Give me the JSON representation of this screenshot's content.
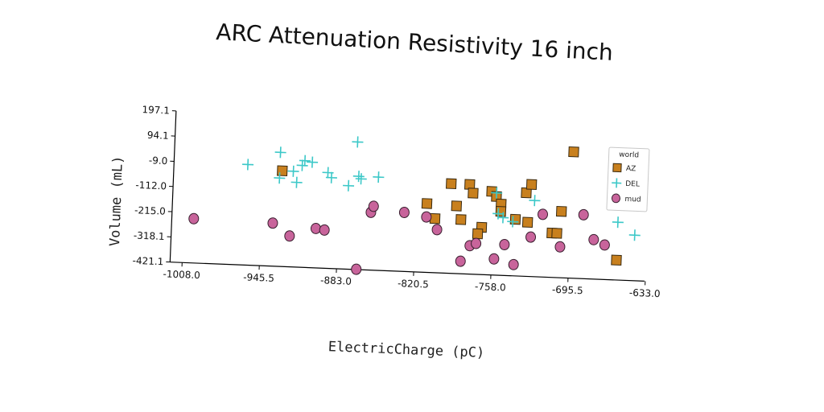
{
  "chart_data": {
    "type": "scatter",
    "title": "ARC Attenuation Resistivity 16 inch",
    "xlabel": "ElectricCharge (pC)",
    "ylabel": "Volume (mL)",
    "xlim": [
      -1008.0,
      -633.0
    ],
    "ylim": [
      -421.1,
      197.1
    ],
    "xticks": [
      "-1008.0",
      "-945.5",
      "-883.0",
      "-820.5",
      "-758.0",
      "-695.5",
      "-633.0"
    ],
    "yticks": [
      "197.1",
      "94.1",
      "-9.0",
      "-112.0",
      "-215.0",
      "-318.1",
      "-421.1"
    ],
    "grid": false,
    "legend": {
      "title": "world",
      "placement": "top-right"
    },
    "series": [
      {
        "name": "AZ",
        "marker": "square",
        "color": "#c8801e",
        "points": [
          [
            -930,
            -30
          ],
          [
            -812,
            -140
          ],
          [
            -805,
            -200
          ],
          [
            -793,
            -55
          ],
          [
            -788,
            -145
          ],
          [
            -784,
            -200
          ],
          [
            -778,
            -55
          ],
          [
            -775,
            -90
          ],
          [
            -767,
            -228
          ],
          [
            -770,
            -255
          ],
          [
            -760,
            -80
          ],
          [
            -756,
            -100
          ],
          [
            -752,
            -130
          ],
          [
            -752,
            -160
          ],
          [
            -740,
            -190
          ],
          [
            -730,
            -200
          ],
          [
            -732,
            -80
          ],
          [
            -728,
            -45
          ],
          [
            -710,
            -240
          ],
          [
            -706,
            -240
          ],
          [
            -703,
            -150
          ],
          [
            -695,
            95
          ],
          [
            -657,
            -340
          ]
        ]
      },
      {
        "name": "DEL",
        "marker": "plus",
        "color": "#3cc8c8",
        "points": [
          [
            -958,
            -10
          ],
          [
            -932,
            45
          ],
          [
            -932,
            -60
          ],
          [
            -921,
            -30
          ],
          [
            -918,
            -75
          ],
          [
            -914,
            -5
          ],
          [
            -912,
            15
          ],
          [
            -906,
            10
          ],
          [
            -893,
            -30
          ],
          [
            -890,
            -50
          ],
          [
            -876,
            -80
          ],
          [
            -870,
            100
          ],
          [
            -868,
            -40
          ],
          [
            -866,
            -50
          ],
          [
            -852,
            -40
          ],
          [
            -756,
            -85
          ],
          [
            -754,
            -170
          ],
          [
            -750,
            -185
          ],
          [
            -742,
            -200
          ],
          [
            -725,
            -110
          ],
          [
            -657,
            -185
          ],
          [
            -643,
            -235
          ]
        ]
      },
      {
        "name": "mud",
        "marker": "circle",
        "color": "#c8649b",
        "points": [
          [
            -1000,
            -240
          ],
          [
            -936,
            -245
          ],
          [
            -922,
            -295
          ],
          [
            -901,
            -260
          ],
          [
            -894,
            -265
          ],
          [
            -867,
            -420
          ],
          [
            -857,
            -185
          ],
          [
            -855,
            -160
          ],
          [
            -830,
            -180
          ],
          [
            -812,
            -195
          ],
          [
            -803,
            -245
          ],
          [
            -783,
            -370
          ],
          [
            -776,
            -305
          ],
          [
            -771,
            -295
          ],
          [
            -756,
            -355
          ],
          [
            -748,
            -295
          ],
          [
            -740,
            -375
          ],
          [
            -727,
            -260
          ],
          [
            -718,
            -165
          ],
          [
            -703,
            -295
          ],
          [
            -685,
            -160
          ],
          [
            -676,
            -260
          ],
          [
            -667,
            -280
          ]
        ]
      }
    ]
  }
}
